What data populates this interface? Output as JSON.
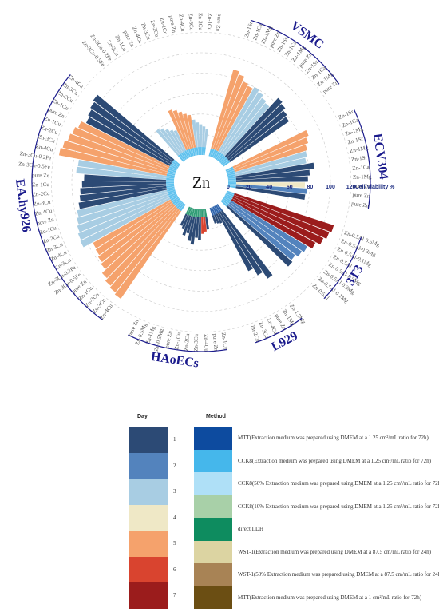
{
  "chart_data": {
    "type": "radial-bar",
    "center_label": "Zn",
    "axis_label": "Cell Viability %",
    "axis_ticks": [
      0,
      20,
      40,
      60,
      80,
      100,
      120
    ],
    "ylim": [
      0,
      120
    ],
    "groups": [
      {
        "name": "VSMC",
        "bars": [
          {
            "label": "Zn-1Sr",
            "method": "CCK8",
            "day": 5,
            "value": 88
          },
          {
            "label": "Zn-1Ca",
            "method": "CCK8",
            "day": 5,
            "value": 85
          },
          {
            "label": "Zn-1Mg",
            "method": "CCK8",
            "day": 5,
            "value": 80
          },
          {
            "label": "pure Zn",
            "method": "CCK8",
            "day": 5,
            "value": 78
          },
          {
            "label": "Zn-1Sr",
            "method": "CCK8",
            "day": 3,
            "value": 80
          },
          {
            "label": "Zn-1Ca",
            "method": "CCK8",
            "day": 3,
            "value": 78
          },
          {
            "label": "Zn-1Mg",
            "method": "CCK8",
            "day": 3,
            "value": 75
          },
          {
            "label": "pure Zn",
            "method": "CCK8",
            "day": 3,
            "value": 73
          },
          {
            "label": "Zn-1Sr",
            "method": "CCK8",
            "day": 1,
            "value": 85
          },
          {
            "label": "Zn-1Ca",
            "method": "CCK8",
            "day": 1,
            "value": 83
          },
          {
            "label": "Zn-1Mg",
            "method": "CCK8",
            "day": 1,
            "value": 80
          },
          {
            "label": "pure Zn",
            "method": "CCK8",
            "day": 1,
            "value": 78
          }
        ]
      },
      {
        "name": "ECV304",
        "bars": [
          {
            "label": "Zn-1Sr",
            "method": "CCK8",
            "day": 5,
            "value": 88
          },
          {
            "label": "Zn-1Ca",
            "method": "CCK8",
            "day": 5,
            "value": 85
          },
          {
            "label": "Zn-1Mg",
            "method": "CCK8",
            "day": 5,
            "value": 82
          },
          {
            "label": "Zn-1Sr",
            "method": "CCK8",
            "day": 3,
            "value": 80
          },
          {
            "label": "Zn-1Mg",
            "method": "CCK8",
            "day": 3,
            "value": 78
          },
          {
            "label": "Zn-1Sr",
            "method": "CCK8",
            "day": 1,
            "value": 85
          },
          {
            "label": "Zn-1Ca",
            "method": "CCK8",
            "day": 1,
            "value": 80
          },
          {
            "label": "Zn-1Mg",
            "method": "CCK8",
            "day": 1,
            "value": 78
          },
          {
            "label": "pure Zn",
            "method": "CCK8",
            "day": 4,
            "value": 75
          },
          {
            "label": "pure Zn",
            "method": "CCK8",
            "day": 2,
            "value": 77
          },
          {
            "label": "pure Zn",
            "method": "CCK8",
            "day": 1,
            "value": 76
          }
        ]
      },
      {
        "name": "3T3",
        "bars": [
          {
            "label": "Zn-0.5Al-0.5Mg",
            "method": "CCK8",
            "day": 7,
            "value": 110
          },
          {
            "label": "Zn-0.5Al-0.3Mg",
            "method": "CCK8",
            "day": 7,
            "value": 108
          },
          {
            "label": "Zn-0.5Al-0.1Mg",
            "method": "CCK8",
            "day": 7,
            "value": 105
          },
          {
            "label": "Zn-0.5Al",
            "method": "CCK8",
            "day": 7,
            "value": 100
          },
          {
            "label": "Zn-0.5Al-0.5Mg",
            "method": "CCK8",
            "day": 2,
            "value": 95
          },
          {
            "label": "Zn-0.5Al-0.3Mg",
            "method": "CCK8",
            "day": 2,
            "value": 93
          },
          {
            "label": "Zn-0.5Al-0.1Mg",
            "method": "CCK8",
            "day": 2,
            "value": 90
          },
          {
            "label": "Zn-0.5Al",
            "method": "CCK8",
            "day": 1,
            "value": 92
          }
        ]
      },
      {
        "name": "L929",
        "bars": [
          {
            "label": "Zn-1.5Mg",
            "method": "MTT",
            "day": 1,
            "value": 88
          },
          {
            "label": "Zn-1Mg",
            "method": "MTT",
            "day": 1,
            "value": 80
          },
          {
            "label": "pure Zn",
            "method": "MTT",
            "day": 1,
            "value": 72
          },
          {
            "label": "Zn-4Cu",
            "method": "MTT",
            "day": 1,
            "value": 18
          },
          {
            "label": "Zn-3Cu",
            "method": "MTT",
            "day": 1,
            "value": 17
          },
          {
            "label": "Zn-2Cu",
            "method": "MTT",
            "day": 1,
            "value": 16
          }
        ]
      },
      {
        "name": "HAoECs",
        "bars": [
          {
            "label": "Zn-1Cu",
            "method": "direct LDH",
            "day": 1,
            "value": 20
          },
          {
            "label": "pure Zn",
            "method": "direct LDH",
            "day": 6,
            "value": 22
          },
          {
            "label": "Zn-4Cu",
            "method": "direct LDH",
            "day": 6,
            "value": 24
          },
          {
            "label": "Zn-3Cu",
            "method": "direct LDH",
            "day": 1,
            "value": 30
          },
          {
            "label": "Zn-2Cu",
            "method": "direct LDH",
            "day": 1,
            "value": 28
          },
          {
            "label": "Zn-1Cu",
            "method": "direct LDH",
            "day": 1,
            "value": 35
          },
          {
            "label": "pure Zn",
            "method": "direct LDH",
            "day": 1,
            "value": 32
          },
          {
            "label": "Zn-0.5Mg",
            "method": "direct LDH",
            "day": 1,
            "value": 25
          },
          {
            "label": "Zn-1Mg",
            "method": "direct LDH",
            "day": 1,
            "value": 28
          },
          {
            "label": "Zn-0.5Mg",
            "method": "direct LDH",
            "day": 1,
            "value": 22
          },
          {
            "label": "pure Zn",
            "method": "direct LDH",
            "day": 1,
            "value": 20
          }
        ]
      },
      {
        "name": "EA.hy926",
        "bars": [
          {
            "label": "Zn-4Cu",
            "method": "CCK8",
            "day": 5,
            "value": 112
          },
          {
            "label": "Zn-3Cu",
            "method": "CCK8",
            "day": 5,
            "value": 110
          },
          {
            "label": "Zn-2Cu",
            "method": "CCK8",
            "day": 5,
            "value": 108
          },
          {
            "label": "Zn-1Cu",
            "method": "CCK8",
            "day": 5,
            "value": 105
          },
          {
            "label": "pure Zn",
            "method": "CCK8",
            "day": 5,
            "value": 100
          },
          {
            "label": "Zn-3Cu-0.5Fe",
            "method": "CCK8",
            "day": 5,
            "value": 98
          },
          {
            "label": "Zn-3Cu-0.2Fe",
            "method": "CCK8",
            "day": 5,
            "value": 96
          },
          {
            "label": "Zn-3Cu",
            "method": "CCK8",
            "day": 5,
            "value": 95
          },
          {
            "label": "Zn-4Cu",
            "method": "CCK8",
            "day": 3,
            "value": 105
          },
          {
            "label": "Zn-3Cu",
            "method": "CCK8",
            "day": 3,
            "value": 104
          },
          {
            "label": "Zn-2Cu",
            "method": "CCK8",
            "day": 3,
            "value": 102
          },
          {
            "label": "Zn-1Cu",
            "method": "CCK8",
            "day": 3,
            "value": 100
          },
          {
            "label": "pure Zn",
            "method": "CCK8",
            "day": 3,
            "value": 98
          },
          {
            "label": "Zn-4Cu",
            "method": "CCK8",
            "day": 1,
            "value": 95
          },
          {
            "label": "Zn-3Cu",
            "method": "CCK8",
            "day": 1,
            "value": 93
          },
          {
            "label": "Zn-2Cu",
            "method": "CCK8",
            "day": 1,
            "value": 92
          },
          {
            "label": "Zn-1Cu",
            "method": "CCK8",
            "day": 1,
            "value": 90
          },
          {
            "label": "pure Zn",
            "method": "CCK8",
            "day": 1,
            "value": 88
          },
          {
            "label": "Zn-3Cu-0.5Fe",
            "method": "CCK8",
            "day": 3,
            "value": 96
          },
          {
            "label": "Zn-3Cu-0.2Fe",
            "method": "CCK8",
            "day": 3,
            "value": 95
          },
          {
            "label": "Zn-4Cu",
            "method": "CCK8",
            "day": 5,
            "value": 115
          },
          {
            "label": "Zn-3Cu",
            "method": "CCK8",
            "day": 5,
            "value": 113
          },
          {
            "label": "Zn-2Cu",
            "method": "CCK8",
            "day": 5,
            "value": 110
          },
          {
            "label": "Zn-1Cu",
            "method": "CCK8",
            "day": 5,
            "value": 108
          },
          {
            "label": "pure Zn",
            "method": "CCK8",
            "day": 5,
            "value": 105
          },
          {
            "label": "Zn-1Cu",
            "method": "CCK8",
            "day": 1,
            "value": 100
          },
          {
            "label": "Zn-2Cu",
            "method": "CCK8",
            "day": 1,
            "value": 102
          },
          {
            "label": "Zn-3Cu",
            "method": "CCK8",
            "day": 1,
            "value": 104
          },
          {
            "label": "Zn-4Cu",
            "method": "CCK8",
            "day": 1,
            "value": 106
          }
        ]
      },
      {
        "name": "",
        "bars": [
          {
            "label": "Zn-3Cu-0.5Fe",
            "method": "CCK8",
            "day": 3,
            "value": 40
          },
          {
            "label": "Zn-3Cu-0.2Fe",
            "method": "CCK8",
            "day": 3,
            "value": 38
          },
          {
            "label": "Zn-2Cu",
            "method": "CCK8",
            "day": 3,
            "value": 35
          },
          {
            "label": "Zn-1Cu",
            "method": "CCK8",
            "day": 3,
            "value": 32
          },
          {
            "label": "pure Zn",
            "method": "CCK8",
            "day": 3,
            "value": 30
          },
          {
            "label": "Zn-4Cu",
            "method": "CCK8",
            "day": 5,
            "value": 50
          },
          {
            "label": "Zn-3Cu",
            "method": "CCK8",
            "day": 5,
            "value": 48
          },
          {
            "label": "Zn-2Cu",
            "method": "CCK8",
            "day": 5,
            "value": 45
          },
          {
            "label": "Zn-1Cu",
            "method": "CCK8",
            "day": 5,
            "value": 42
          },
          {
            "label": "pure Zn",
            "method": "CCK8",
            "day": 5,
            "value": 40
          },
          {
            "label": "Zn-4Cu",
            "method": "CCK8",
            "day": 3,
            "value": 35
          },
          {
            "label": "Zn-3Cu",
            "method": "CCK8",
            "day": 3,
            "value": 32
          },
          {
            "label": "Zn-2Cu",
            "method": "CCK8",
            "day": 3,
            "value": 30
          },
          {
            "label": "Zn-1Cu",
            "method": "CCK8",
            "day": 3,
            "value": 28
          },
          {
            "label": "pure Zn",
            "method": "CCK8",
            "day": 3,
            "value": 26
          }
        ]
      }
    ],
    "day_colors": {
      "1": "#2c4a75",
      "2": "#5383bd",
      "3": "#a8cde3",
      "4": "#efe8c6",
      "5": "#f5a26c",
      "6": "#d9442f",
      "7": "#9b1c1c"
    },
    "method_colors": {
      "MTT": "#0d4b9f",
      "CCK8": "#45b7eb",
      "direct LDH": "#0e8c5f"
    },
    "legend": {
      "day_title": "Day",
      "method_title": "Method",
      "days": [
        {
          "label": "1",
          "color": "#2c4a75"
        },
        {
          "label": "2",
          "color": "#5383bd"
        },
        {
          "label": "3",
          "color": "#a8cde3"
        },
        {
          "label": "4",
          "color": "#efe8c6"
        },
        {
          "label": "5",
          "color": "#f5a26c"
        },
        {
          "label": "6",
          "color": "#d9442f"
        },
        {
          "label": "7",
          "color": "#9b1c1c"
        }
      ],
      "methods": [
        {
          "label": "MTT(Extraction medium was prepared using DMEM at a 1.25 cm²/mL ratio for 72h)",
          "color": "#0d4b9f"
        },
        {
          "label": "CCK8(Extraction medium was prepared using DMEM at a 1.25 cm²/mL ratio for 72h)",
          "color": "#45b7eb"
        },
        {
          "label": "CCK8(50% Extraction medium was prepared using DMEM at a 1.25 cm²/mL ratio for 72h)",
          "color": "#afe0f7"
        },
        {
          "label": "CCK8(10% Extraction medium was prepared using DMEM at a 1.25 cm²/mL ratio for 72h)",
          "color": "#a8d0a8"
        },
        {
          "label": "direct LDH",
          "color": "#0e8c5f"
        },
        {
          "label": "WST-1(Extraction medium was prepared using DMEM at a 87.5 cm/mL ratio for 24h)",
          "color": "#dcd4a2"
        },
        {
          "label": "WST-1(50% Extraction medium was prepared using DMEM at a 87.5 cm/mL ratio for 24h)",
          "color": "#a88355"
        },
        {
          "label": "MTT(Extraction medium was prepared using DMEM at a 1 cm²/mL ratio for 72h)",
          "color": "#6b4e13"
        }
      ]
    }
  }
}
